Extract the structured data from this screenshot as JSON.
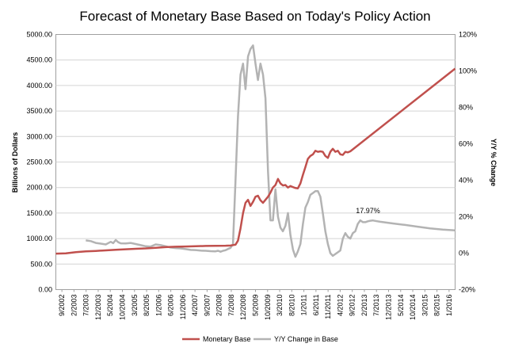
{
  "chart_data": {
    "type": "line",
    "title": "Forecast of Monetary Base Based on Today's Policy Action",
    "ylabel": "Billions of Dollars",
    "y2label": "Y/Y % Change",
    "ylim": [
      0,
      5000
    ],
    "y2lim": [
      -20,
      120
    ],
    "yticks": [
      "0.00",
      "500.00",
      "1000.00",
      "1500.00",
      "2000.00",
      "2500.00",
      "3000.00",
      "3500.00",
      "4000.00",
      "4500.00",
      "5000.00"
    ],
    "y2ticks": [
      "-20%",
      "0%",
      "20%",
      "40%",
      "60%",
      "80%",
      "100%",
      "120%"
    ],
    "x_tick_labels": [
      "9/2002",
      "2/2003",
      "7/2003",
      "12/2003",
      "5/2004",
      "10/2004",
      "3/2005",
      "8/2005",
      "1/2006",
      "6/2006",
      "11/2006",
      "4/2007",
      "9/2007",
      "2/2008",
      "7/2008",
      "12/2008",
      "5/2009",
      "10/2009",
      "3/2010",
      "8/2010",
      "1/2011",
      "6/2011",
      "11/2011",
      "4/2012",
      "9/2012",
      "2/2013",
      "7/2013",
      "12/2013",
      "5/2014",
      "10/2014",
      "3/2015",
      "8/2015",
      "1/2016"
    ],
    "x_range_months": [
      0,
      160
    ],
    "annotation": "17.97%",
    "annotation_point": [
      127,
      17.97
    ],
    "grid": "horizontal",
    "legend_position": "bottom",
    "series": [
      {
        "name": "Monetary Base",
        "axis": "left",
        "color": "#c0504d",
        "points": [
          [
            0,
            705
          ],
          [
            4,
            710
          ],
          [
            8,
            735
          ],
          [
            12,
            748
          ],
          [
            16,
            758
          ],
          [
            20,
            768
          ],
          [
            24,
            780
          ],
          [
            28,
            790
          ],
          [
            32,
            800
          ],
          [
            36,
            808
          ],
          [
            40,
            820
          ],
          [
            44,
            832
          ],
          [
            48,
            840
          ],
          [
            52,
            845
          ],
          [
            56,
            850
          ],
          [
            60,
            855
          ],
          [
            64,
            858
          ],
          [
            68,
            860
          ],
          [
            70,
            863
          ],
          [
            72,
            880
          ],
          [
            73,
            960
          ],
          [
            74,
            1200
          ],
          [
            75,
            1500
          ],
          [
            76,
            1700
          ],
          [
            77,
            1760
          ],
          [
            78,
            1640
          ],
          [
            79,
            1720
          ],
          [
            80,
            1820
          ],
          [
            81,
            1840
          ],
          [
            82,
            1750
          ],
          [
            83,
            1700
          ],
          [
            84,
            1760
          ],
          [
            85,
            1820
          ],
          [
            86,
            1900
          ],
          [
            87,
            2000
          ],
          [
            88,
            2050
          ],
          [
            89,
            2170
          ],
          [
            90,
            2080
          ],
          [
            91,
            2040
          ],
          [
            92,
            2050
          ],
          [
            93,
            2000
          ],
          [
            94,
            2030
          ],
          [
            95,
            2010
          ],
          [
            96,
            1990
          ],
          [
            97,
            1985
          ],
          [
            98,
            2080
          ],
          [
            99,
            2250
          ],
          [
            100,
            2400
          ],
          [
            101,
            2560
          ],
          [
            102,
            2620
          ],
          [
            103,
            2650
          ],
          [
            104,
            2720
          ],
          [
            105,
            2700
          ],
          [
            106,
            2710
          ],
          [
            107,
            2700
          ],
          [
            108,
            2620
          ],
          [
            109,
            2580
          ],
          [
            110,
            2700
          ],
          [
            111,
            2760
          ],
          [
            112,
            2700
          ],
          [
            113,
            2720
          ],
          [
            114,
            2650
          ],
          [
            115,
            2640
          ],
          [
            116,
            2700
          ],
          [
            117,
            2690
          ],
          [
            118,
            2710
          ],
          [
            160,
            4330
          ]
        ]
      },
      {
        "name": "Y/Y Change in Base",
        "axis": "right",
        "color": "#b3b3b3",
        "points": [
          [
            12,
            7
          ],
          [
            14,
            6.6
          ],
          [
            16,
            5.6
          ],
          [
            18,
            5.2
          ],
          [
            20,
            4.8
          ],
          [
            22,
            6.2
          ],
          [
            23,
            5.5
          ],
          [
            24,
            7.2
          ],
          [
            25,
            6
          ],
          [
            26,
            5.4
          ],
          [
            28,
            5.3
          ],
          [
            30,
            5.6
          ],
          [
            32,
            5.0
          ],
          [
            34,
            4.4
          ],
          [
            36,
            3.8
          ],
          [
            38,
            3.6
          ],
          [
            40,
            4.8
          ],
          [
            42,
            4.4
          ],
          [
            44,
            3.8
          ],
          [
            46,
            3.1
          ],
          [
            48,
            2.8
          ],
          [
            50,
            2.6
          ],
          [
            52,
            2.2
          ],
          [
            54,
            1.8
          ],
          [
            56,
            1.7
          ],
          [
            58,
            1.4
          ],
          [
            60,
            1.3
          ],
          [
            62,
            1.1
          ],
          [
            64,
            1.0
          ],
          [
            65,
            1.3
          ],
          [
            66,
            0.8
          ],
          [
            67,
            1.3
          ],
          [
            68,
            1.6
          ],
          [
            69,
            2.3
          ],
          [
            70,
            2.9
          ],
          [
            71,
            5
          ],
          [
            72,
            40
          ],
          [
            73,
            75
          ],
          [
            74,
            98
          ],
          [
            75,
            104
          ],
          [
            76,
            90
          ],
          [
            77,
            108
          ],
          [
            78,
            112
          ],
          [
            79,
            114
          ],
          [
            80,
            104
          ],
          [
            81,
            95
          ],
          [
            82,
            104
          ],
          [
            83,
            98
          ],
          [
            84,
            85
          ],
          [
            85,
            45
          ],
          [
            86,
            18
          ],
          [
            87,
            18
          ],
          [
            88,
            35
          ],
          [
            89,
            20
          ],
          [
            90,
            14
          ],
          [
            91,
            12
          ],
          [
            92,
            15
          ],
          [
            93,
            22
          ],
          [
            94,
            10
          ],
          [
            95,
            2
          ],
          [
            96,
            -2
          ],
          [
            97,
            1
          ],
          [
            98,
            5
          ],
          [
            99,
            16
          ],
          [
            100,
            25
          ],
          [
            101,
            28
          ],
          [
            102,
            32
          ],
          [
            103,
            33
          ],
          [
            104,
            34
          ],
          [
            105,
            34
          ],
          [
            106,
            31
          ],
          [
            107,
            22
          ],
          [
            108,
            12
          ],
          [
            109,
            5
          ],
          [
            110,
            0
          ],
          [
            111,
            -1.5
          ],
          [
            112,
            -0.5
          ],
          [
            113,
            0.5
          ],
          [
            114,
            1.5
          ],
          [
            115,
            8
          ],
          [
            116,
            11
          ],
          [
            117,
            9
          ],
          [
            118,
            8
          ],
          [
            119,
            11
          ],
          [
            120,
            12
          ],
          [
            121,
            16
          ],
          [
            122,
            18
          ],
          [
            123,
            17
          ],
          [
            124,
            17
          ],
          [
            125,
            17.5
          ],
          [
            126,
            17.8
          ],
          [
            127,
            17.97
          ],
          [
            128,
            17.7
          ],
          [
            130,
            17.2
          ],
          [
            135,
            16.3
          ],
          [
            140,
            15.5
          ],
          [
            145,
            14.5
          ],
          [
            150,
            13.6
          ],
          [
            155,
            12.9
          ],
          [
            160,
            12.5
          ]
        ]
      }
    ]
  }
}
